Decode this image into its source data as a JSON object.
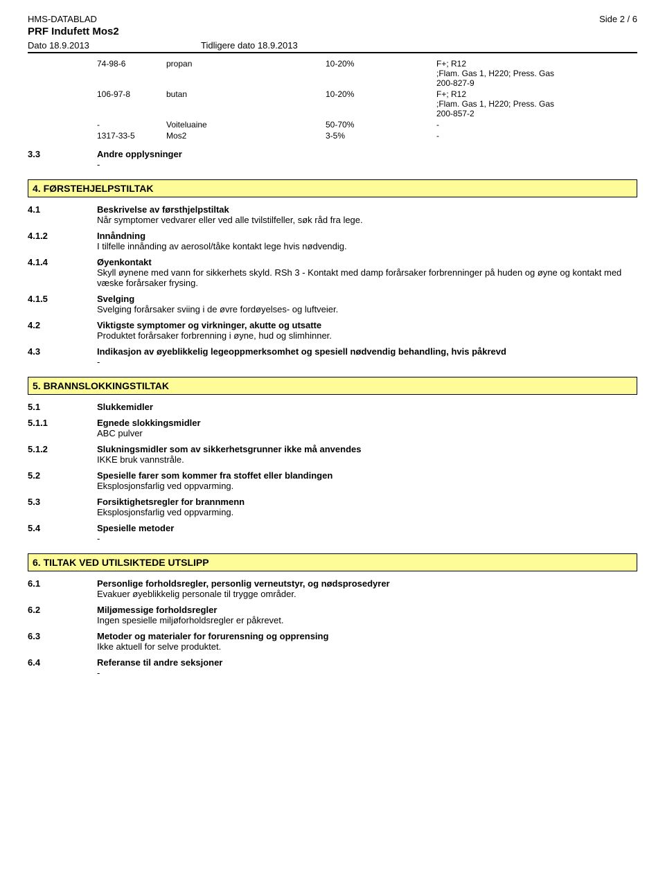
{
  "header": {
    "title_label": "HMS-DATABLAD",
    "product": "PRF Indufett Mos2",
    "page_label": "Side  2 / 6",
    "date_left": "Dato 18.9.2013",
    "date_right": "Tidligere dato 18.9.2013"
  },
  "ingredients": [
    {
      "cas": "74-98-6",
      "name": "propan",
      "pct": "10-20%",
      "haz": [
        "F+; R12",
        ";Flam. Gas 1, H220; Press. Gas",
        "200-827-9"
      ]
    },
    {
      "cas": "106-97-8",
      "name": "butan",
      "pct": "10-20%",
      "haz": [
        "F+; R12",
        ";Flam. Gas 1, H220; Press. Gas",
        "200-857-2"
      ]
    },
    {
      "cas": "-",
      "name": "Voiteluaine",
      "pct": "50-70%",
      "haz": [
        "-"
      ]
    },
    {
      "cas": "1317-33-5",
      "name": "Mos2",
      "pct": "3-5%",
      "haz": [
        "-"
      ]
    }
  ],
  "s3_3": {
    "num": "3.3",
    "label": "Andre opplysninger",
    "text": "-"
  },
  "sec4": {
    "bar": "4. FØRSTEHJELPSTILTAK",
    "r1": {
      "num": "4.1",
      "label": "Beskrivelse av førsthjelpstiltak",
      "text": "Når symptomer vedvarer eller ved alle tvilstilfeller, søk råd fra lege."
    },
    "r2": {
      "num": "4.1.2",
      "label": "Innåndning",
      "text": "I tilfelle innånding av aerosol/tåke kontakt lege hvis nødvendig."
    },
    "r3": {
      "num": "4.1.4",
      "label": "Øyenkontakt",
      "text": "Skyll øynene med vann for sikkerhets skyld. RSh 3 - Kontakt med damp forårsaker forbrenninger på huden og øyne og kontakt med væske forårsaker frysing."
    },
    "r4": {
      "num": "4.1.5",
      "label": "Svelging",
      "text": "Svelging forårsaker sviing i de øvre fordøyelses- og luftveier."
    },
    "r5": {
      "num": "4.2",
      "label": "Viktigste symptomer og virkninger, akutte og utsatte",
      "text": "Produktet forårsaker forbrenning i øyne, hud og slimhinner."
    },
    "r6": {
      "num": "4.3",
      "label": "Indikasjon av øyeblikkelig legeoppmerksomhet og spesiell nødvendig behandling, hvis påkrevd",
      "text": "-"
    }
  },
  "sec5": {
    "bar": "5. BRANNSLOKKINGSTILTAK",
    "r1": {
      "num": "5.1",
      "label": "Slukkemidler"
    },
    "r2": {
      "num": "5.1.1",
      "label": "Egnede slokkingsmidler",
      "text": "ABC pulver"
    },
    "r3": {
      "num": "5.1.2",
      "label": "Slukningsmidler som av sikkerhetsgrunner ikke må anvendes",
      "text": "IKKE bruk vannstråle."
    },
    "r4": {
      "num": "5.2",
      "label": "Spesielle farer som kommer fra stoffet eller blandingen",
      "text": "Eksplosjonsfarlig ved oppvarming."
    },
    "r5": {
      "num": "5.3",
      "label": "Forsiktighetsregler for brannmenn",
      "text": "Eksplosjonsfarlig ved oppvarming."
    },
    "r6": {
      "num": "5.4",
      "label": "Spesielle metoder",
      "text": "-"
    }
  },
  "sec6": {
    "bar": "6. TILTAK VED UTILSIKTEDE UTSLIPP",
    "r1": {
      "num": "6.1",
      "label": "Personlige forholdsregler, personlig verneutstyr, og nødsprosedyrer",
      "text": "Evakuer øyeblikkelig personale til trygge områder."
    },
    "r2": {
      "num": "6.2",
      "label": "Miljømessige forholdsregler",
      "text": "Ingen spesielle miljøforholdsregler er påkrevet."
    },
    "r3": {
      "num": "6.3",
      "label": "Metoder og materialer for forurensning og opprensing",
      "text": "Ikke aktuell for selve produktet."
    },
    "r4": {
      "num": "6.4",
      "label": "Referanse til andre seksjoner",
      "text": "-"
    }
  },
  "colors": {
    "bar_bg": "#fdfc99",
    "bar_border": "#000000",
    "text": "#000000",
    "bg": "#ffffff"
  }
}
